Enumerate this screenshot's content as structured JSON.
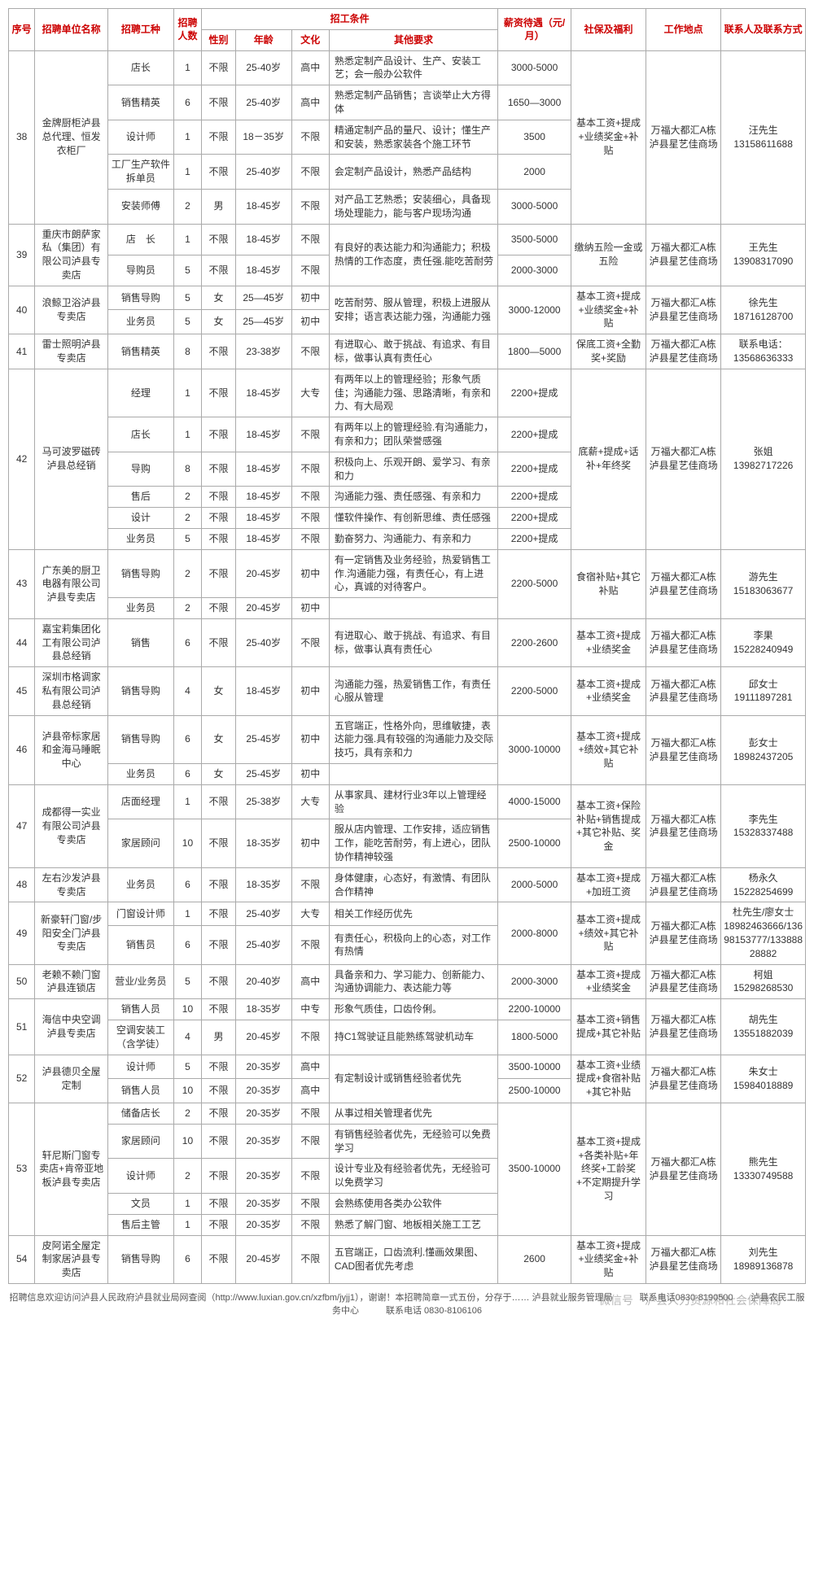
{
  "headers": {
    "seq": "序号",
    "unit": "招聘单位名称",
    "job": "招聘工种",
    "num": "招聘人数",
    "cond": "招工条件",
    "sex": "性别",
    "age": "年龄",
    "edu": "文化",
    "req": "其他要求",
    "salary": "薪资待遇（元/月）",
    "benefit": "社保及福利",
    "loc": "工作地点",
    "contact": "联系人及联系方式"
  },
  "rows": [
    {
      "seq": "38",
      "unit": "金牌厨柜泸县总代理、恒发衣柜厂",
      "jobs": [
        {
          "job": "店长",
          "num": "1",
          "sex": "不限",
          "age": "25-40岁",
          "edu": "高中",
          "req": "熟悉定制产品设计、生产、安装工艺；会一般办公软件",
          "salary": "3000-5000"
        },
        {
          "job": "销售精英",
          "num": "6",
          "sex": "不限",
          "age": "25-40岁",
          "edu": "高中",
          "req": "熟悉定制产品销售；言谈举止大方得体",
          "salary": "1650—3000"
        },
        {
          "job": "设计师",
          "num": "1",
          "sex": "不限",
          "age": "18－35岁",
          "edu": "不限",
          "req": "精通定制产品的量尺、设计；懂生产和安装，熟悉家装各个施工环节",
          "salary": "3500"
        },
        {
          "job": "工厂生产软件拆单员",
          "num": "1",
          "sex": "不限",
          "age": "25-40岁",
          "edu": "不限",
          "req": "会定制产品设计，熟悉产品结构",
          "salary": "2000"
        },
        {
          "job": "安装师傅",
          "num": "2",
          "sex": "男",
          "age": "18-45岁",
          "edu": "不限",
          "req": "对产品工艺熟悉；安装细心，具备现场处理能力，能与客户现场沟通",
          "salary": "3000-5000"
        }
      ],
      "benefit": "基本工资+提成+业绩奖金+补贴",
      "loc": "万福大都汇A栋泸县星艺佳商场",
      "contact": "汪先生\n13158611688"
    },
    {
      "seq": "39",
      "unit": "重庆市朗萨家私（集团）有限公司泸县专卖店",
      "jobs": [
        {
          "job": "店　长",
          "num": "1",
          "sex": "不限",
          "age": "18-45岁",
          "edu": "不限",
          "req": "",
          "salary": "3500-5000",
          "merge_req": true
        },
        {
          "job": "导购员",
          "num": "5",
          "sex": "不限",
          "age": "18-45岁",
          "edu": "不限",
          "req": "有良好的表达能力和沟通能力；积极热情的工作态度，责任强.能吃苦耐劳",
          "salary": "2000-3000"
        }
      ],
      "benefit": "缴纳五险一金或五险",
      "loc": "万福大都汇A栋泸县星艺佳商场",
      "contact": "王先生\n13908317090"
    },
    {
      "seq": "40",
      "unit": "浪鲸卫浴泸县专卖店",
      "jobs": [
        {
          "job": "销售导购",
          "num": "5",
          "sex": "女",
          "age": "25—45岁",
          "edu": "初中",
          "req": "",
          "salary": "",
          "merge_req": true,
          "merge_salary": true
        },
        {
          "job": "业务员",
          "num": "5",
          "sex": "女",
          "age": "25—45岁",
          "edu": "初中",
          "req": "吃苦耐劳、服从管理，积极上进服从安排；语言表达能力强，沟通能力强",
          "salary": "3000-12000"
        }
      ],
      "benefit": "基本工资+提成+业绩奖金+补贴",
      "loc": "万福大都汇A栋泸县星艺佳商场",
      "contact": "徐先生\n18716128700"
    },
    {
      "seq": "41",
      "unit": "雷士照明泸县专卖店",
      "jobs": [
        {
          "job": "销售精英",
          "num": "8",
          "sex": "不限",
          "age": "23-38岁",
          "edu": "不限",
          "req": "有进取心、敢于挑战、有追求、有目标，做事认真有责任心",
          "salary": "1800—5000"
        }
      ],
      "benefit": "保底工资+全勤奖+奖励",
      "loc": "万福大都汇A栋泸县星艺佳商场",
      "contact": "联系电话：\n13568636333"
    },
    {
      "seq": "42",
      "unit": "马可波罗磁砖泸县总经销",
      "jobs": [
        {
          "job": "经理",
          "num": "1",
          "sex": "不限",
          "age": "18-45岁",
          "edu": "大专",
          "req": "有两年以上的管理经验；形象气质佳；沟通能力强、思路清晰，有亲和力、有大局观",
          "salary": "2200+提成"
        },
        {
          "job": "店长",
          "num": "1",
          "sex": "不限",
          "age": "18-45岁",
          "edu": "不限",
          "req": "有两年以上的管理经验.有沟通能力，有亲和力；团队荣誉感强",
          "salary": "2200+提成"
        },
        {
          "job": "导购",
          "num": "8",
          "sex": "不限",
          "age": "18-45岁",
          "edu": "不限",
          "req": "积极向上、乐观开朗、爱学习、有亲和力",
          "salary": "2200+提成"
        },
        {
          "job": "售后",
          "num": "2",
          "sex": "不限",
          "age": "18-45岁",
          "edu": "不限",
          "req": "沟通能力强、责任感强、有亲和力",
          "salary": "2200+提成"
        },
        {
          "job": "设计",
          "num": "2",
          "sex": "不限",
          "age": "18-45岁",
          "edu": "不限",
          "req": "懂软件操作、有创新思维、责任感强",
          "salary": "2200+提成"
        },
        {
          "job": "业务员",
          "num": "5",
          "sex": "不限",
          "age": "18-45岁",
          "edu": "不限",
          "req": "勤奋努力、沟通能力、有亲和力",
          "salary": "2200+提成"
        }
      ],
      "benefit": "底薪+提成+话补+年终奖",
      "loc": "万福大都汇A栋泸县星艺佳商场",
      "contact": "张姐\n13982717226"
    },
    {
      "seq": "43",
      "unit": "广东美的厨卫电器有限公司泸县专卖店",
      "jobs": [
        {
          "job": "销售导购",
          "num": "2",
          "sex": "不限",
          "age": "20-45岁",
          "edu": "初中",
          "req": "有一定销售及业务经验，热爱销售工作.沟通能力强，有责任心，有上进心，真诚的对待客户。",
          "salary": "",
          "merge_salary": true
        },
        {
          "job": "业务员",
          "num": "2",
          "sex": "不限",
          "age": "20-45岁",
          "edu": "初中",
          "req": "",
          "salary": "2200-5000",
          "merge_req": true
        }
      ],
      "benefit": "食宿补贴+其它补贴",
      "loc": "万福大都汇A栋泸县星艺佳商场",
      "contact": "游先生\n15183063677"
    },
    {
      "seq": "44",
      "unit": "嘉宝莉集团化工有限公司泸县总经销",
      "jobs": [
        {
          "job": "销售",
          "num": "6",
          "sex": "不限",
          "age": "25-40岁",
          "edu": "不限",
          "req": "有进取心、敢于挑战、有追求、有目标，做事认真有责任心",
          "salary": "2200-2600"
        }
      ],
      "benefit": "基本工资+提成+业绩奖金",
      "loc": "万福大都汇A栋泸县星艺佳商场",
      "contact": "李果\n15228240949"
    },
    {
      "seq": "45",
      "unit": "深圳市格调家私有限公司泸县总经销",
      "jobs": [
        {
          "job": "销售导购",
          "num": "4",
          "sex": "女",
          "age": "18-45岁",
          "edu": "初中",
          "req": "沟通能力强，热爱销售工作，有责任心服从管理",
          "salary": "2200-5000"
        }
      ],
      "benefit": "基本工资+提成+业绩奖金",
      "loc": "万福大都汇A栋泸县星艺佳商场",
      "contact": "邱女士\n19111897281"
    },
    {
      "seq": "46",
      "unit": "泸县帝标家居和金海马睡眠中心",
      "jobs": [
        {
          "job": "销售导购",
          "num": "6",
          "sex": "女",
          "age": "25-45岁",
          "edu": "初中",
          "req": "五官端正，性格外向，思维敏捷，表达能力强.具有较强的沟通能力及交际技巧，具有亲和力",
          "salary": "",
          "merge_salary": true
        },
        {
          "job": "业务员",
          "num": "6",
          "sex": "女",
          "age": "25-45岁",
          "edu": "初中",
          "req": "",
          "salary": "3000-10000",
          "merge_req": true
        }
      ],
      "benefit": "基本工资+提成+绩效+其它补贴",
      "loc": "万福大都汇A栋泸县星艺佳商场",
      "contact": "彭女士\n18982437205"
    },
    {
      "seq": "47",
      "unit": "成都得一实业有限公司泸县专卖店",
      "jobs": [
        {
          "job": "店面经理",
          "num": "1",
          "sex": "不限",
          "age": "25-38岁",
          "edu": "大专",
          "req": "从事家具、建材行业3年以上管理经验",
          "salary": "4000-15000"
        },
        {
          "job": "家居顾问",
          "num": "10",
          "sex": "不限",
          "age": "18-35岁",
          "edu": "初中",
          "req": "服从店内管理、工作安排，适应销售工作，能吃苦耐劳，有上进心，团队协作精神较强",
          "salary": "2500-10000"
        }
      ],
      "benefit": "基本工资+保险补贴+销售提成+其它补贴、奖金",
      "loc": "万福大都汇A栋泸县星艺佳商场",
      "contact": "李先生\n15328337488"
    },
    {
      "seq": "48",
      "unit": "左右沙发泸县专卖店",
      "jobs": [
        {
          "job": "业务员",
          "num": "6",
          "sex": "不限",
          "age": "18-35岁",
          "edu": "不限",
          "req": "身体健康，心态好，有激情、有团队合作精神",
          "salary": "2000-5000"
        }
      ],
      "benefit": "基本工资+提成+加班工资",
      "loc": "万福大都汇A栋泸县星艺佳商场",
      "contact": "杨永久\n15228254699"
    },
    {
      "seq": "49",
      "unit": "新豪轩门窗/步阳安全门泸县专卖店",
      "jobs": [
        {
          "job": "门窗设计师",
          "num": "1",
          "sex": "不限",
          "age": "25-40岁",
          "edu": "大专",
          "req": "相关工作经历优先",
          "salary": "",
          "merge_salary": true
        },
        {
          "job": "销售员",
          "num": "6",
          "sex": "不限",
          "age": "25-40岁",
          "edu": "不限",
          "req": "有责任心，积极向上的心态，对工作有热情",
          "salary": "2000-8000"
        }
      ],
      "benefit": "基本工资+提成+绩效+其它补贴",
      "loc": "万福大都汇A栋泸县星艺佳商场",
      "contact": "杜先生/廖女士\n18982463666/13698153777/13388828882"
    },
    {
      "seq": "50",
      "unit": "老赖不赖门窗泸县连锁店",
      "jobs": [
        {
          "job": "营业/业务员",
          "num": "5",
          "sex": "不限",
          "age": "20-40岁",
          "edu": "高中",
          "req": "具备亲和力、学习能力、创新能力、沟通协调能力、表达能力等",
          "salary": "2000-3000"
        }
      ],
      "benefit": "基本工资+提成+业绩奖金",
      "loc": "万福大都汇A栋泸县星艺佳商场",
      "contact": "柯姐\n15298268530"
    },
    {
      "seq": "51",
      "unit": "海信中央空调泸县专卖店",
      "jobs": [
        {
          "job": "销售人员",
          "num": "10",
          "sex": "不限",
          "age": "18-35岁",
          "edu": "中专",
          "req": "形象气质佳，口齿伶俐。",
          "salary": "2200-10000"
        },
        {
          "job": "空调安装工（含学徒）",
          "num": "4",
          "sex": "男",
          "age": "20-45岁",
          "edu": "不限",
          "req": "持C1驾驶证且能熟练驾驶机动车",
          "salary": "1800-5000"
        }
      ],
      "benefit": "基本工资+销售提成+其它补贴",
      "loc": "万福大都汇A栋泸县星艺佳商场",
      "contact": "胡先生\n13551882039"
    },
    {
      "seq": "52",
      "unit": "泸县德贝全屋定制",
      "jobs": [
        {
          "job": "设计师",
          "num": "5",
          "sex": "不限",
          "age": "20-35岁",
          "edu": "高中",
          "req": "",
          "salary": "3500-10000",
          "merge_req": true
        },
        {
          "job": "销售人员",
          "num": "10",
          "sex": "不限",
          "age": "20-35岁",
          "edu": "高中",
          "req": "有定制设计或销售经验者优先",
          "salary": "2500-10000"
        }
      ],
      "benefit": "基本工资+业绩提成+食宿补贴+其它补贴",
      "loc": "万福大都汇A栋泸县星艺佳商场",
      "contact": "朱女士\n15984018889"
    },
    {
      "seq": "53",
      "unit": "轩尼斯门窗专卖店+肯帝亚地板泸县专卖店",
      "jobs": [
        {
          "job": "储备店长",
          "num": "2",
          "sex": "不限",
          "age": "20-35岁",
          "edu": "不限",
          "req": "从事过相关管理者优先",
          "salary": "",
          "merge_salary": true
        },
        {
          "job": "家居顾问",
          "num": "10",
          "sex": "不限",
          "age": "20-35岁",
          "edu": "不限",
          "req": "有销售经验者优先，无经验可以免费学习",
          "salary": ""
        },
        {
          "job": "设计师",
          "num": "2",
          "sex": "不限",
          "age": "20-35岁",
          "edu": "不限",
          "req": "设计专业及有经验者优先，无经验可以免费学习",
          "salary": "3500-10000"
        },
        {
          "job": "文员",
          "num": "1",
          "sex": "不限",
          "age": "20-35岁",
          "edu": "不限",
          "req": "会熟练使用各类办公软件",
          "salary": ""
        },
        {
          "job": "售后主管",
          "num": "1",
          "sex": "不限",
          "age": "20-35岁",
          "edu": "不限",
          "req": "熟悉了解门窗、地板相关施工工艺",
          "salary": ""
        }
      ],
      "benefit": "基本工资+提成+各类补贴+年终奖+工龄奖+不定期提升学习",
      "loc": "万福大都汇A栋泸县星艺佳商场",
      "contact": "熊先生\n13330749588"
    },
    {
      "seq": "54",
      "unit": "皮阿诺全屋定制家居泸县专卖店",
      "jobs": [
        {
          "job": "销售导购",
          "num": "6",
          "sex": "不限",
          "age": "20-45岁",
          "edu": "不限",
          "req": "五官端正，口齿流利.懂画效果图、CAD图者优先考虑",
          "salary": "2600"
        }
      ],
      "benefit": "基本工资+提成+业绩奖金+补贴",
      "loc": "万福大都汇A栋泸县星艺佳商场",
      "contact": "刘先生\n18989136878"
    }
  ],
  "footer": "招聘信息欢迎访问泸县人民政府泸县就业局网查阅（http://www.luxian.gov.cn/xzfbm/jyjj1），谢谢！本招聘简章一式五份，分存于……\n泸县就业服务管理局　　　联系电话0830-8190500　　泸县农民工服务中心　　　联系电话 0830-8106106",
  "watermark": "微信号　泸县人力资源和社会保障局"
}
